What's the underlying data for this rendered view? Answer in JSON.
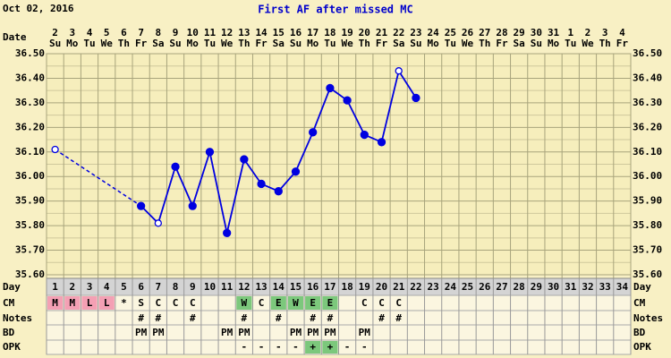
{
  "header": {
    "date": "Oct 02, 2016"
  },
  "chart_data": {
    "type": "line",
    "title": "First AF after missed MC",
    "row_labels": {
      "date": "Date",
      "day": "Day",
      "cm": "CM",
      "notes": "Notes",
      "bd": "BD",
      "opk": "OPK"
    },
    "dates": [
      "2",
      "3",
      "4",
      "5",
      "6",
      "7",
      "8",
      "9",
      "10",
      "11",
      "12",
      "13",
      "14",
      "15",
      "16",
      "17",
      "18",
      "19",
      "20",
      "21",
      "22",
      "23",
      "24",
      "25",
      "26",
      "27",
      "28",
      "29",
      "30",
      "31",
      "1",
      "2",
      "3",
      "4"
    ],
    "weekdays": [
      "Su",
      "Mo",
      "Tu",
      "We",
      "Th",
      "Fr",
      "Sa",
      "Su",
      "Mo",
      "Tu",
      "We",
      "Th",
      "Fr",
      "Sa",
      "Su",
      "Mo",
      "Tu",
      "We",
      "Th",
      "Fr",
      "Sa",
      "Su",
      "Mo",
      "Tu",
      "We",
      "Th",
      "Fr",
      "Sa",
      "Su",
      "Mo",
      "Tu",
      "We",
      "Th",
      "Fr"
    ],
    "days": [
      1,
      2,
      3,
      4,
      5,
      6,
      7,
      8,
      9,
      10,
      11,
      12,
      13,
      14,
      15,
      16,
      17,
      18,
      19,
      20,
      21,
      22,
      23,
      24,
      25,
      26,
      27,
      28,
      29,
      30,
      31,
      32,
      33,
      34
    ],
    "values": [
      36.11,
      null,
      null,
      null,
      null,
      35.88,
      35.81,
      36.04,
      35.88,
      36.1,
      35.77,
      36.07,
      35.97,
      35.94,
      36.02,
      36.18,
      36.36,
      36.31,
      36.17,
      36.14,
      36.43,
      36.32,
      null,
      null,
      null,
      null,
      null,
      null,
      null,
      null,
      null,
      null,
      null,
      null
    ],
    "open": [
      true,
      false,
      false,
      false,
      false,
      false,
      true,
      false,
      false,
      false,
      false,
      false,
      false,
      false,
      false,
      false,
      false,
      false,
      false,
      false,
      true,
      false,
      false,
      false,
      false,
      false,
      false,
      false,
      false,
      false,
      false,
      false,
      false,
      false
    ],
    "color": "#0000e0",
    "ylim": [
      35.6,
      36.5
    ],
    "yticks": [
      {
        "value": 35.6,
        "label": "35.60"
      },
      {
        "value": 35.7,
        "label": "35.70"
      },
      {
        "value": 35.8,
        "label": "35.80"
      },
      {
        "value": 35.9,
        "label": "35.90"
      },
      {
        "value": 36.0,
        "label": "36.00"
      },
      {
        "value": 36.1,
        "label": "36.10"
      },
      {
        "value": 36.2,
        "label": "36.20"
      },
      {
        "value": 36.3,
        "label": "36.30"
      },
      {
        "value": 36.4,
        "label": "36.40"
      },
      {
        "value": 36.5,
        "label": "36.50"
      }
    ],
    "grid": true,
    "cm": [
      "M",
      "M",
      "L",
      "L",
      "*",
      "S",
      "C",
      "C",
      "C",
      null,
      null,
      "W",
      "C",
      "E",
      "W",
      "E",
      "E",
      null,
      "C",
      "C",
      "C",
      null,
      null,
      null,
      null,
      null,
      null,
      null,
      null,
      null,
      null,
      null,
      null,
      null
    ],
    "cm_fill": [
      "#f4a0b4",
      "#f4a0b4",
      "#f4a0b4",
      "#f4a0b4",
      null,
      null,
      null,
      null,
      null,
      null,
      null,
      "#7cc87c",
      null,
      "#7cc87c",
      "#7cc87c",
      "#7cc87c",
      "#7cc87c",
      null,
      null,
      null,
      null,
      null,
      null,
      null,
      null,
      null,
      null,
      null,
      null,
      null,
      null,
      null,
      null,
      null
    ],
    "notes": [
      null,
      null,
      null,
      null,
      null,
      "#",
      "#",
      null,
      "#",
      null,
      null,
      "#",
      null,
      "#",
      null,
      "#",
      "#",
      null,
      null,
      "#",
      "#",
      null,
      null,
      null,
      null,
      null,
      null,
      null,
      null,
      null,
      null,
      null,
      null,
      null
    ],
    "bd": [
      null,
      null,
      null,
      null,
      null,
      "PM",
      "PM",
      null,
      null,
      null,
      "PM",
      "PM",
      null,
      null,
      "PM",
      "PM",
      "PM",
      null,
      "PM",
      null,
      null,
      null,
      null,
      null,
      null,
      null,
      null,
      null,
      null,
      null,
      null,
      null,
      null,
      null
    ],
    "opk": [
      null,
      null,
      null,
      null,
      null,
      null,
      null,
      null,
      null,
      null,
      null,
      "-",
      "-",
      "-",
      "-",
      "+",
      "+",
      "-",
      "-",
      null,
      null,
      null,
      null,
      null,
      null,
      null,
      null,
      null,
      null,
      null,
      null,
      null,
      null,
      null
    ],
    "opk_fill": [
      null,
      null,
      null,
      null,
      null,
      null,
      null,
      null,
      null,
      null,
      null,
      null,
      null,
      null,
      null,
      "#7cc87c",
      "#7cc87c",
      null,
      null,
      null,
      null,
      null,
      null,
      null,
      null,
      null,
      null,
      null,
      null,
      null,
      null,
      null,
      null,
      null
    ]
  }
}
